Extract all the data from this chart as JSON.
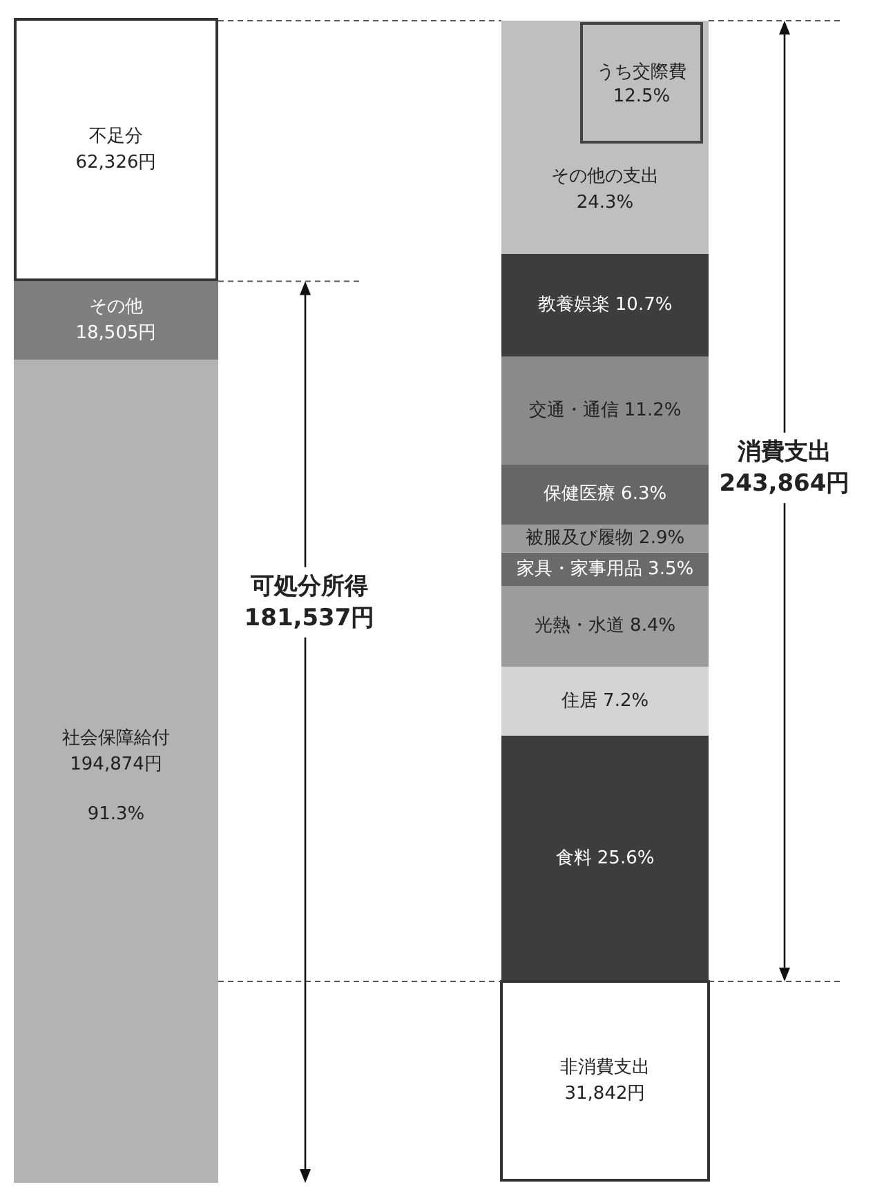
{
  "chart_data": [
    {
      "type": "bar",
      "stacked": true,
      "categories": [
        null
      ],
      "series": [
        {
          "name": "社会保障給付",
          "color": "#b3b3b3",
          "values": [
            194874
          ],
          "value_labels": [
            "194,874円"
          ]
        },
        {
          "name": "その他",
          "color": "#7f7f7f",
          "values": [
            18505
          ],
          "value_labels": [
            "18,505円"
          ]
        },
        {
          "name": "不足分",
          "color": "#ffffff",
          "values": [
            62326
          ],
          "value_labels": [
            "62,326円"
          ]
        }
      ],
      "annotations": [
        "91.3%",
        "可処分所得\n181,537円"
      ]
    },
    {
      "type": "bar",
      "stacked": true,
      "categories": [
        null
      ],
      "series": [
        {
          "name": "食料",
          "color": "#3d3d3d",
          "values": [
            25.6
          ],
          "value_labels": [
            "25.6%"
          ]
        },
        {
          "name": "住居",
          "color": "#d4d4d4",
          "values": [
            7.2
          ],
          "value_labels": [
            "7.2%"
          ]
        },
        {
          "name": "光熱・水道",
          "color": "#9c9c9c",
          "values": [
            8.4
          ],
          "value_labels": [
            "8.4%"
          ]
        },
        {
          "name": "家具・家事用品",
          "color": "#6a6a6a",
          "values": [
            3.5
          ],
          "value_labels": [
            "3.5%"
          ]
        },
        {
          "name": "被服及び履物",
          "color": "#9a9a9a",
          "values": [
            2.9
          ],
          "value_labels": [
            "2.9%"
          ]
        },
        {
          "name": "保健医療",
          "color": "#666666",
          "values": [
            6.3
          ],
          "value_labels": [
            "6.3%"
          ]
        },
        {
          "name": "交通・通信",
          "color": "#8a8a8a",
          "values": [
            11.2
          ],
          "value_labels": [
            "11.2%"
          ]
        },
        {
          "name": "教養娯楽",
          "color": "#3d3d3d",
          "values": [
            10.7
          ],
          "value_labels": [
            "10.7%"
          ]
        },
        {
          "name": "その他の支出",
          "color": "#bfbfbf",
          "values": [
            24.3
          ],
          "value_labels": [
            "24.3%"
          ]
        }
      ],
      "annotations": [
        "うち交際費\n12.5%",
        "消費支出\n243,864円"
      ]
    },
    {
      "type": "other",
      "annotations": [
        "非消費支出",
        "31,842円"
      ]
    }
  ]
}
